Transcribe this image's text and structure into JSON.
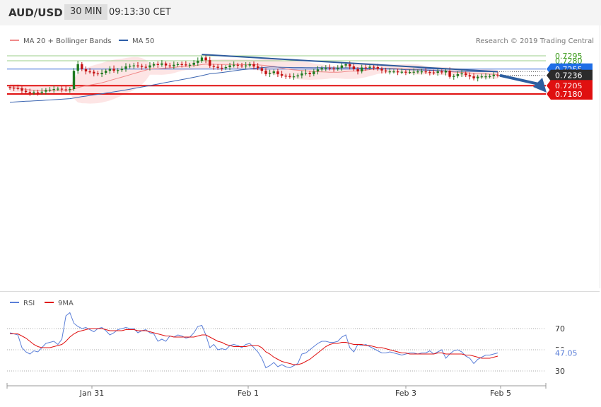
{
  "header": {
    "symbol": "AUD/USD",
    "interval": "30 MIN",
    "time": "09:13:30 CET"
  },
  "legend": {
    "items": [
      {
        "label": "MA 20 + Bollinger Bands",
        "color": "#f08a8a"
      },
      {
        "label": "MA 50",
        "color": "#2d5ea8"
      }
    ],
    "copyright": "Research © 2019 Trading Central"
  },
  "colors": {
    "up": "#1f7a1f",
    "down": "#c41212",
    "ma20": "#f08a8a",
    "ma50": "#3a64b0",
    "band_fill": "#fde0e0",
    "trendline": "#2d5a9c",
    "arrow": "#2d5fa0",
    "resistance": "#9bcf8a",
    "support": "#e01010",
    "pivot": "#3a6fd8"
  },
  "chart_data": [
    {
      "type": "candlestick",
      "instrument": "AUD/USD",
      "timeframe": "30 MIN",
      "x_tick_labels": [
        "Jan 31",
        "Feb 1",
        "Feb 3",
        "Feb 5"
      ],
      "ylim": [
        0.7145,
        0.732
      ],
      "last_price": 0.7236,
      "closes": [
        0.7199,
        0.7198,
        0.7197,
        0.719,
        0.7186,
        0.7183,
        0.7185,
        0.7184,
        0.7187,
        0.7192,
        0.7193,
        0.7195,
        0.7196,
        0.7194,
        0.7193,
        0.7195,
        0.725,
        0.727,
        0.7255,
        0.7248,
        0.7247,
        0.7242,
        0.724,
        0.7244,
        0.725,
        0.7256,
        0.725,
        0.7252,
        0.7256,
        0.7263,
        0.7265,
        0.7266,
        0.7265,
        0.7262,
        0.726,
        0.7266,
        0.727,
        0.7268,
        0.7272,
        0.7266,
        0.7264,
        0.7268,
        0.727,
        0.7269,
        0.7268,
        0.7268,
        0.7274,
        0.728,
        0.729,
        0.7282,
        0.7265,
        0.7262,
        0.7259,
        0.7258,
        0.7261,
        0.7266,
        0.7268,
        0.7266,
        0.7265,
        0.7266,
        0.727,
        0.7263,
        0.7258,
        0.725,
        0.724,
        0.7243,
        0.7248,
        0.724,
        0.7235,
        0.7234,
        0.7232,
        0.7233,
        0.7236,
        0.7242,
        0.7244,
        0.724,
        0.7248,
        0.7254,
        0.7258,
        0.7259,
        0.7257,
        0.7256,
        0.7259,
        0.7266,
        0.727,
        0.7263,
        0.7255,
        0.7248,
        0.726,
        0.7259,
        0.7262,
        0.7261,
        0.7256,
        0.7251,
        0.7248,
        0.7248,
        0.7248,
        0.7246,
        0.7247,
        0.7246,
        0.7246,
        0.7247,
        0.7248,
        0.7248,
        0.7246,
        0.7245,
        0.7244,
        0.7248,
        0.7245,
        0.725,
        0.7232,
        0.7234,
        0.724,
        0.7242,
        0.7237,
        0.7233,
        0.7227,
        0.7232,
        0.7233,
        0.7233,
        0.7234,
        0.7238,
        0.7236
      ],
      "series": [
        {
          "name": "MA 20 + Bollinger Bands",
          "color": "#f08a8a"
        },
        {
          "name": "MA 50",
          "color": "#3a64b0"
        }
      ],
      "trendline": {
        "from": {
          "bar": 48,
          "price": 0.7299
        },
        "to": {
          "bar": 122,
          "price": 0.7247
        }
      },
      "forecast_arrow": {
        "from": 0.7236,
        "to": 0.718
      },
      "levels": [
        {
          "label": "0.7295",
          "value": 0.7295,
          "role": "resistance"
        },
        {
          "label": "0.7280",
          "value": 0.728,
          "role": "resistance"
        },
        {
          "label": "0.7255",
          "value": 0.7255,
          "role": "pivot"
        },
        {
          "label": "0.7247",
          "value": 0.7247,
          "role": "info"
        },
        {
          "label": "0.7236",
          "value": 0.7236,
          "role": "last"
        },
        {
          "label": "0.7205",
          "value": 0.7205,
          "role": "support"
        },
        {
          "label": "0.7180",
          "value": 0.718,
          "role": "support"
        }
      ]
    },
    {
      "type": "line",
      "indicator": "RSI",
      "series": [
        {
          "name": "RSI",
          "color": "#5b7fd8"
        },
        {
          "name": "9MA",
          "color": "#e01010"
        }
      ],
      "ylim": [
        20,
        80
      ],
      "y_tick_labels": [
        "70",
        "50",
        "30"
      ],
      "guide_levels": [
        70,
        50,
        30
      ],
      "last_value_label": "47.05",
      "rsi_values": [
        66,
        65,
        64,
        52,
        48,
        46,
        49,
        48,
        52,
        56,
        57,
        58,
        55,
        60,
        82,
        85,
        75,
        72,
        70,
        71,
        69,
        67,
        70,
        71,
        68,
        64,
        66,
        69,
        70,
        71,
        70,
        70,
        66,
        68,
        69,
        66,
        65,
        58,
        60,
        58,
        63,
        62,
        64,
        63,
        61,
        62,
        66,
        72,
        73,
        64,
        52,
        55,
        50,
        51,
        50,
        54,
        55,
        54,
        52,
        55,
        56,
        52,
        48,
        42,
        33,
        35,
        38,
        34,
        36,
        34,
        33,
        35,
        37,
        46,
        47,
        50,
        53,
        56,
        58,
        58,
        57,
        57,
        58,
        62,
        64,
        52,
        48,
        55,
        54,
        55,
        53,
        51,
        49,
        47,
        47,
        48,
        47,
        46,
        45,
        46,
        47,
        47,
        46,
        47,
        47,
        49,
        46,
        48,
        50,
        42,
        46,
        49,
        50,
        48,
        44,
        42,
        37,
        41,
        43,
        45,
        45,
        46,
        47
      ],
      "ma9_values": [
        65,
        65,
        65,
        63,
        61,
        58,
        55,
        53,
        52,
        52,
        52,
        53,
        54,
        55,
        58,
        62,
        65,
        67,
        68,
        69,
        70,
        70,
        70,
        70,
        69,
        68,
        68,
        68,
        68,
        69,
        69,
        69,
        68,
        68,
        68,
        67,
        66,
        65,
        64,
        63,
        63,
        62,
        62,
        62,
        62,
        62,
        62,
        63,
        64,
        64,
        62,
        60,
        58,
        57,
        55,
        54,
        53,
        53,
        53,
        53,
        54,
        54,
        54,
        52,
        48,
        46,
        43,
        41,
        39,
        38,
        37,
        36,
        36,
        37,
        39,
        41,
        44,
        47,
        50,
        53,
        55,
        56,
        56,
        57,
        57,
        56,
        55,
        55,
        55,
        54,
        54,
        53,
        52,
        52,
        51,
        50,
        49,
        48,
        47,
        47,
        46,
        46,
        46,
        46,
        46,
        46,
        46,
        47,
        47,
        46,
        46,
        46,
        46,
        46,
        45,
        45,
        44,
        43,
        42,
        42,
        42,
        43,
        44
      ]
    }
  ]
}
